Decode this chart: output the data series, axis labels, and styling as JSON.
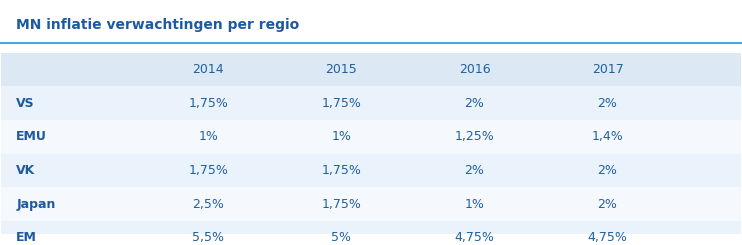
{
  "title": "MN inflatie verwachtingen per regio",
  "columns": [
    "",
    "2014",
    "2015",
    "2016",
    "2017"
  ],
  "rows": [
    [
      "VS",
      "1,75%",
      "1,75%",
      "2%",
      "2%"
    ],
    [
      "EMU",
      "1%",
      "1%",
      "1,25%",
      "1,4%"
    ],
    [
      "VK",
      "1,75%",
      "1,75%",
      "2%",
      "2%"
    ],
    [
      "Japan",
      "2,5%",
      "1,75%",
      "1%",
      "2%"
    ],
    [
      "EM",
      "5,5%",
      "5%",
      "4,75%",
      "4,75%"
    ]
  ],
  "header_bg": "#dce9f5",
  "row_bg_even": "#eaf2fb",
  "row_bg_odd": "#f5f9fe",
  "title_color": "#1f5aa0",
  "header_text_color": "#2060a0",
  "row_label_color": "#1f5aa0",
  "data_text_color": "#2060a0",
  "title_line_color": "#4da6e0",
  "bottom_line_color": "#4da6e0",
  "bg_color": "#ffffff",
  "title_fontsize": 10,
  "header_fontsize": 9,
  "data_fontsize": 9
}
